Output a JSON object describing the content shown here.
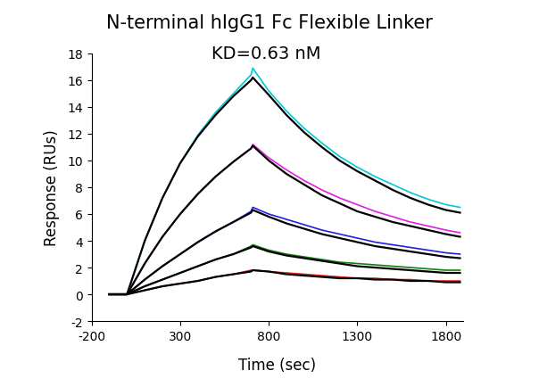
{
  "chart_data": {
    "type": "line",
    "title": "N-terminal hIgG1 Fc Flexible Linker",
    "annotation": "KD=0.63 nM",
    "x_label": "Time (sec)",
    "y_label": "Response (RUs)",
    "x": [
      -100,
      0,
      100,
      200,
      300,
      400,
      500,
      600,
      700,
      710,
      800,
      900,
      1000,
      1100,
      1200,
      1300,
      1400,
      1500,
      1600,
      1700,
      1800,
      1880
    ],
    "series": [
      {
        "color": "#00c8d8",
        "values": [
          0,
          0,
          4.0,
          7.2,
          9.8,
          11.9,
          13.6,
          15.0,
          16.4,
          16.9,
          15.2,
          13.7,
          12.4,
          11.3,
          10.3,
          9.5,
          8.8,
          8.2,
          7.6,
          7.1,
          6.7,
          6.5
        ]
      },
      {
        "color": "#000000",
        "values": [
          0,
          0,
          4.0,
          7.2,
          9.8,
          11.8,
          13.4,
          14.8,
          16.0,
          16.2,
          14.9,
          13.4,
          12.1,
          11.0,
          10.0,
          9.2,
          8.5,
          7.8,
          7.2,
          6.7,
          6.3,
          6.1
        ]
      },
      {
        "color": "#e020e0",
        "values": [
          0,
          0,
          2.3,
          4.3,
          6.0,
          7.5,
          8.8,
          9.9,
          10.9,
          11.2,
          10.2,
          9.3,
          8.5,
          7.8,
          7.2,
          6.7,
          6.2,
          5.8,
          5.4,
          5.1,
          4.8,
          4.6
        ]
      },
      {
        "color": "#000000",
        "values": [
          0,
          0,
          2.3,
          4.3,
          6.0,
          7.5,
          8.8,
          9.9,
          10.9,
          11.1,
          10.0,
          9.0,
          8.2,
          7.4,
          6.8,
          6.2,
          5.8,
          5.4,
          5.1,
          4.8,
          4.5,
          4.3
        ]
      },
      {
        "color": "#2020e0",
        "values": [
          0,
          0,
          1.1,
          2.1,
          3.0,
          3.9,
          4.7,
          5.4,
          6.2,
          6.5,
          6.0,
          5.6,
          5.2,
          4.8,
          4.5,
          4.2,
          3.9,
          3.7,
          3.5,
          3.3,
          3.1,
          3.0
        ]
      },
      {
        "color": "#000000",
        "values": [
          0,
          0,
          1.1,
          2.1,
          3.0,
          3.9,
          4.7,
          5.4,
          6.1,
          6.3,
          5.8,
          5.3,
          4.9,
          4.5,
          4.2,
          3.9,
          3.6,
          3.4,
          3.2,
          3.0,
          2.8,
          2.7
        ]
      },
      {
        "color": "#108010",
        "values": [
          0,
          0,
          0.6,
          1.1,
          1.6,
          2.1,
          2.6,
          3.0,
          3.6,
          3.7,
          3.3,
          3.0,
          2.8,
          2.6,
          2.4,
          2.3,
          2.2,
          2.1,
          2.0,
          1.9,
          1.8,
          1.8
        ]
      },
      {
        "color": "#000000",
        "values": [
          0,
          0,
          0.6,
          1.1,
          1.6,
          2.1,
          2.6,
          3.0,
          3.5,
          3.6,
          3.2,
          2.9,
          2.7,
          2.5,
          2.3,
          2.1,
          2.0,
          1.9,
          1.8,
          1.7,
          1.6,
          1.6
        ]
      },
      {
        "color": "#e02020",
        "values": [
          0,
          0,
          0.3,
          0.6,
          0.8,
          1.0,
          1.3,
          1.5,
          1.8,
          1.8,
          1.7,
          1.6,
          1.5,
          1.4,
          1.3,
          1.2,
          1.2,
          1.1,
          1.1,
          1.0,
          1.0,
          1.0
        ]
      },
      {
        "color": "#000000",
        "values": [
          0,
          0,
          0.3,
          0.6,
          0.8,
          1.0,
          1.3,
          1.5,
          1.7,
          1.8,
          1.7,
          1.5,
          1.4,
          1.3,
          1.2,
          1.2,
          1.1,
          1.1,
          1.0,
          1.0,
          0.9,
          0.9
        ]
      }
    ],
    "xlim": [
      -200,
      1900
    ],
    "xticks": [
      -200,
      300,
      800,
      1300,
      1800
    ],
    "ylim": [
      -2,
      18
    ],
    "yticks": [
      -2,
      0,
      2,
      4,
      6,
      8,
      10,
      12,
      14,
      16,
      18
    ],
    "grid": false
  }
}
